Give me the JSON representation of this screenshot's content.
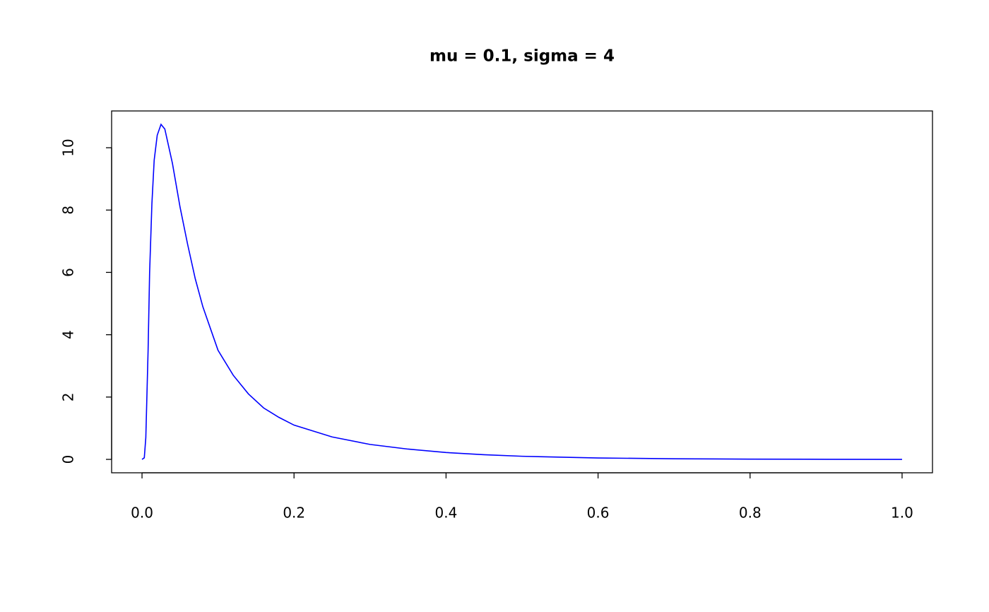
{
  "chart_data": {
    "type": "line",
    "title": "mu = 0.1, sigma = 4",
    "x": [
      0,
      0.003,
      0.005,
      0.008,
      0.01,
      0.013,
      0.016,
      0.02,
      0.025,
      0.03,
      0.04,
      0.05,
      0.06,
      0.07,
      0.08,
      0.09,
      0.1,
      0.12,
      0.14,
      0.16,
      0.18,
      0.2,
      0.25,
      0.3,
      0.35,
      0.4,
      0.45,
      0.5,
      0.6,
      0.7,
      0.8,
      0.9,
      1.0
    ],
    "values": [
      0,
      0.05,
      0.7,
      3.5,
      6.0,
      8.2,
      9.6,
      10.4,
      10.75,
      10.6,
      9.5,
      8.1,
      6.9,
      5.8,
      4.9,
      4.2,
      3.5,
      2.7,
      2.1,
      1.65,
      1.35,
      1.1,
      0.72,
      0.48,
      0.33,
      0.22,
      0.15,
      0.1,
      0.045,
      0.02,
      0.008,
      0.003,
      0
    ],
    "color": "blue",
    "xlim": [
      -0.04,
      1.04
    ],
    "ylim": [
      -0.43,
      11.18
    ],
    "xticks": [
      {
        "value": 0,
        "label": "0.0"
      },
      0.2,
      0.4,
      0.6,
      0.8,
      {
        "value": 1,
        "label": "1.0"
      }
    ],
    "yticks": [
      0,
      2,
      4,
      6,
      8,
      10
    ]
  }
}
